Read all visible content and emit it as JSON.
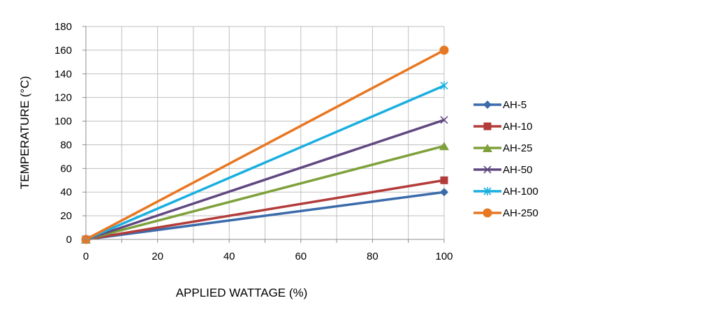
{
  "chart_data": {
    "type": "line",
    "title": "",
    "xlabel": "APPLIED WATTAGE (%)",
    "ylabel": "TEMPERATURE (°C)",
    "x": [
      0,
      100
    ],
    "xlim": [
      0,
      100
    ],
    "ylim": [
      0,
      180
    ],
    "x_ticks": [
      "0",
      "20",
      "40",
      "60",
      "80",
      "100"
    ],
    "y_ticks": [
      "0",
      "20",
      "40",
      "60",
      "80",
      "100",
      "120",
      "140",
      "160",
      "180"
    ],
    "grid": true,
    "legend_position": "right",
    "series": [
      {
        "name": "AH-5",
        "values": [
          0,
          40
        ],
        "color": "#3b6bab",
        "marker": "diamond"
      },
      {
        "name": "AH-10",
        "values": [
          0,
          50
        ],
        "color": "#b23c3a",
        "marker": "square"
      },
      {
        "name": "AH-25",
        "values": [
          0,
          79
        ],
        "color": "#7ea13b",
        "marker": "triangle"
      },
      {
        "name": "AH-50",
        "values": [
          0,
          101
        ],
        "color": "#604880",
        "marker": "x"
      },
      {
        "name": "AH-100",
        "values": [
          0,
          130
        ],
        "color": "#1aafe0",
        "marker": "star"
      },
      {
        "name": "AH-250",
        "values": [
          0,
          160
        ],
        "color": "#e87722",
        "marker": "circle"
      }
    ]
  }
}
